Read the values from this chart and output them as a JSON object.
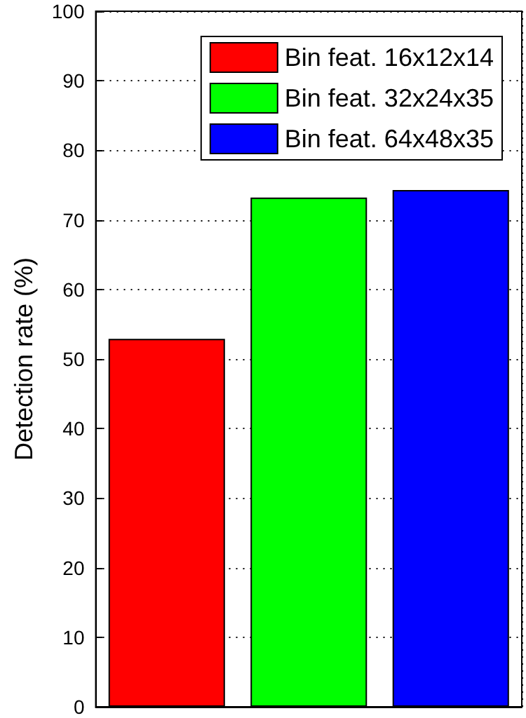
{
  "chart_data": {
    "type": "bar",
    "ylabel": "Detection rate (%)",
    "categories": [
      null,
      null,
      null
    ],
    "series": [
      {
        "name": "Bin feat. 16x12x14",
        "color": "#ff0000",
        "values": [
          52.9,
          null,
          null
        ]
      },
      {
        "name": "Bin feat. 32x24x35",
        "color": "#00ff00",
        "values": [
          null,
          73.2,
          null
        ]
      },
      {
        "name": "Bin feat. 64x48x35",
        "color": "#0000ff",
        "values": [
          null,
          null,
          74.3
        ]
      }
    ],
    "ylim": [
      0,
      100
    ],
    "yticks": [
      0,
      10,
      20,
      30,
      40,
      50,
      60,
      70,
      80,
      90,
      100
    ],
    "grid": true,
    "legend": "top right"
  }
}
